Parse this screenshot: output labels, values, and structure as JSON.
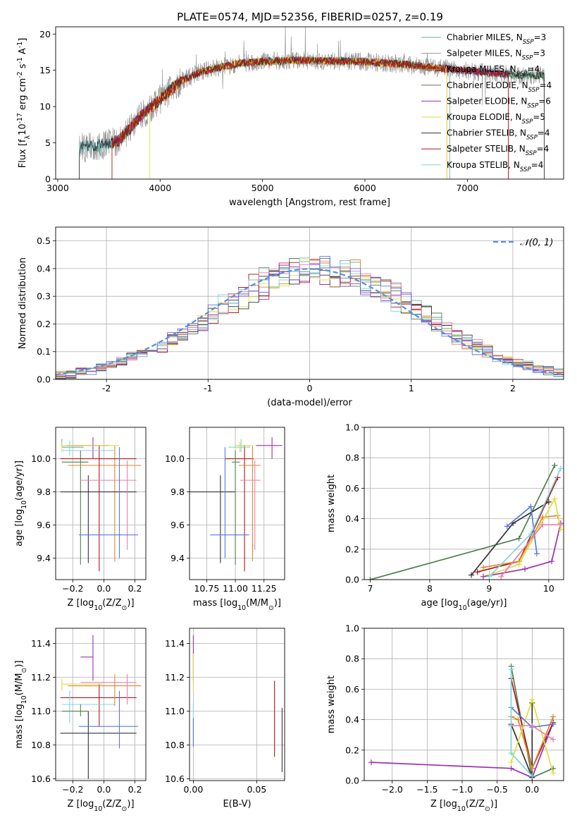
{
  "figure_title": "PLATE=0574, MJD=52356, FIBERID=0257, z=0.19",
  "colors": {
    "models": [
      "#6fa8a0",
      "#9a9a9a",
      "#d98a2b",
      "#4f7f4f",
      "#9b30b0",
      "#dede3a",
      "#333333",
      "#b01818",
      "#7fd6dc"
    ],
    "gauss": "#5a8de0",
    "grid": "#b0b0b0",
    "pink": "#e87fb0",
    "blue": "#5a78e0"
  },
  "chart_data": [
    {
      "id": "spectrum",
      "type": "line",
      "title": "PLATE=0574, MJD=52356, FIBERID=0257, z=0.19",
      "xlabel": "wavelength [Angstrom, rest frame]",
      "ylabel": "Flux [f$_\\lambda$10$^{-17}$ erg cm$^{-2}$ s$^{-1}$ A$^{-1}$]",
      "xlim": [
        2980,
        7940
      ],
      "ylim": [
        0,
        21
      ],
      "xticks": [
        3000,
        4000,
        5000,
        6000,
        7000
      ],
      "yticks": [
        0,
        5,
        10,
        15,
        20
      ],
      "legend_position": "right",
      "legend": [
        {
          "label": "Chabrier MILES, N",
          "sub": "SSP",
          "tail": "=3"
        },
        {
          "label": "Salpeter MILES, N",
          "sub": "SSP",
          "tail": "=3"
        },
        {
          "label": "Kroupa MILES, N",
          "sub": "SSP",
          "tail": "=4"
        },
        {
          "label": "Chabrier ELODIE, N",
          "sub": "SSP",
          "tail": "=4"
        },
        {
          "label": "Salpeter ELODIE, N",
          "sub": "SSP",
          "tail": "=6"
        },
        {
          "label": "Kroupa ELODIE, N",
          "sub": "SSP",
          "tail": "=5"
        },
        {
          "label": "Chabrier STELIB, N",
          "sub": "SSP",
          "tail": "=4"
        },
        {
          "label": "Salpeter STELIB, N",
          "sub": "SSP",
          "tail": "=4"
        },
        {
          "label": "Kroupa STELIB, N",
          "sub": "SSP",
          "tail": "=4"
        }
      ],
      "continuum": {
        "x": [
          3200,
          3400,
          3600,
          3800,
          4000,
          4200,
          4400,
          4600,
          4800,
          5000,
          5300,
          5600,
          6000,
          6400,
          6800,
          7200,
          7500
        ],
        "y": [
          4.3,
          4.6,
          5.3,
          8.5,
          11.0,
          13.5,
          14.8,
          15.5,
          16.0,
          16.2,
          16.4,
          16.3,
          16.2,
          15.8,
          15.2,
          14.7,
          14.3
        ]
      },
      "model_starts": [
        3210,
        3210,
        3530,
        3530,
        3530,
        3900,
        3210,
        3530,
        3210
      ],
      "model_ends": [
        6830,
        7750,
        6800,
        7750,
        7400,
        6800,
        7750,
        7400,
        7750
      ]
    },
    {
      "id": "residuals",
      "type": "line",
      "xlabel": "(data-model)/error",
      "ylabel": "Normed distribution",
      "xlim": [
        -2.5,
        2.5
      ],
      "ylim": [
        0,
        0.55
      ],
      "xticks": [
        -2,
        -1,
        0,
        1,
        2
      ],
      "yticks": [
        0.0,
        0.1,
        0.2,
        0.3,
        0.4,
        0.5
      ],
      "legend": [
        "𝒩(0, 1)"
      ],
      "legend_position": "top-right",
      "gauss_mean": 0,
      "gauss_sigma": 1
    },
    {
      "id": "age_vs_Z",
      "type": "scatter",
      "xlabel": "Z [log$_{10}$(Z/Z$_\\odot$)]",
      "ylabel": "age  [log$_{10}$(age/yr)]",
      "xlim": [
        -0.31,
        0.27
      ],
      "ylim": [
        9.27,
        10.19
      ],
      "xticks": [
        -0.2,
        0.0,
        0.2
      ],
      "xtick_labels": [
        "−0.2",
        "0.0",
        "0.2"
      ],
      "yticks": [
        9.4,
        9.6,
        9.8,
        10.0
      ],
      "points": [
        {
          "x": -0.27,
          "y": 10.07,
          "xerr": [
            0.0,
            0.14
          ],
          "yerr": [
            0.0,
            0.05
          ],
          "color": 0
        },
        {
          "x": -0.15,
          "y": 9.98,
          "xerr": [
            0.12,
            0.05
          ],
          "yerr": [
            0.62,
            0.07
          ],
          "color": 3
        },
        {
          "x": 0.07,
          "y": 9.96,
          "xerr": [
            0.3,
            0.17
          ],
          "yerr": [
            0.58,
            0.12
          ],
          "color": 2
        },
        {
          "x": -0.03,
          "y": 10.0,
          "xerr": [
            0.25,
            0.24
          ],
          "yerr": [
            0.68,
            0.08
          ],
          "color": 7
        },
        {
          "x": -0.1,
          "y": 9.8,
          "xerr": [
            0.18,
            0.31
          ],
          "yerr": [
            0.43,
            0.1
          ],
          "color": 6
        },
        {
          "x": 0.15,
          "y": 9.87,
          "xerr": [
            0.3,
            0.06
          ],
          "yerr": [
            0.42,
            0.12
          ],
          "color": "pink"
        },
        {
          "x": 0.1,
          "y": 9.54,
          "xerr": [
            0.26,
            0.12
          ],
          "yerr": [
            0.14,
            0.53
          ],
          "color": "blue"
        },
        {
          "x": -0.07,
          "y": 10.08,
          "xerr": [
            0.17,
            0.1
          ],
          "yerr": [
            0.08,
            0.05
          ],
          "color": 4
        },
        {
          "x": -0.22,
          "y": 10.05,
          "xerr": [
            0.05,
            0.29
          ],
          "yerr": [
            0.03,
            0.06
          ],
          "color": 8
        },
        {
          "x": -0.27,
          "y": 10.08,
          "xerr": [
            0.0,
            0.37
          ],
          "yerr": [
            0.04,
            0.02
          ],
          "color": 5
        }
      ]
    },
    {
      "id": "age_vs_mass",
      "type": "scatter",
      "xlabel": "mass [log$_{10}$(M/M$_\\odot$)]",
      "ylabel": "",
      "xlim": [
        10.6,
        11.43
      ],
      "ylim": [
        9.27,
        10.19
      ],
      "xticks": [
        10.75,
        11.0,
        11.25
      ],
      "xtick_labels": [
        "10.75",
        "11.00",
        "11.25"
      ],
      "yticks": [
        9.4,
        9.6,
        9.8,
        10.0
      ],
      "points": [
        {
          "x": 10.87,
          "y": 9.8,
          "xerr": [
            0.27,
            0.13
          ],
          "yerr": [
            0.43,
            0.1
          ],
          "color": 6
        },
        {
          "x": 11.08,
          "y": 10.0,
          "xerr": [
            0.17,
            0.08
          ],
          "yerr": [
            0.68,
            0.08
          ],
          "color": 7
        },
        {
          "x": 11.15,
          "y": 9.96,
          "xerr": [
            0.12,
            0.07
          ],
          "yerr": [
            0.58,
            0.12
          ],
          "color": 2
        },
        {
          "x": 11.17,
          "y": 9.87,
          "xerr": [
            0.13,
            0.05
          ],
          "yerr": [
            0.42,
            0.12
          ],
          "color": "pink"
        },
        {
          "x": 10.91,
          "y": 9.54,
          "xerr": [
            0.13,
            0.21
          ],
          "yerr": [
            0.14,
            0.53
          ],
          "color": "blue"
        },
        {
          "x": 11.32,
          "y": 10.08,
          "xerr": [
            0.14,
            0.09
          ],
          "yerr": [
            0.08,
            0.05
          ],
          "color": 4
        },
        {
          "x": 11.05,
          "y": 10.07,
          "xerr": [
            0.11,
            0.08
          ],
          "yerr": [
            0.03,
            0.05
          ],
          "color": 8
        },
        {
          "x": 11.04,
          "y": 10.08,
          "xerr": [
            0.04,
            0.1
          ],
          "yerr": [
            0.04,
            0.02
          ],
          "color": 5
        },
        {
          "x": 11.0,
          "y": 9.98,
          "xerr": [
            0.03,
            0.04
          ],
          "yerr": [
            0.62,
            0.07
          ],
          "color": 3
        }
      ]
    },
    {
      "id": "weight_vs_age",
      "type": "line",
      "xlabel": "age  [log$_{10}$(age/yr)]",
      "ylabel": "mass weight",
      "xlim": [
        6.9,
        10.25
      ],
      "ylim": [
        0,
        1.0
      ],
      "xticks": [
        7,
        8,
        9,
        10
      ],
      "yticks": [
        0.0,
        0.2,
        0.4,
        0.6,
        0.8,
        1.0
      ],
      "series": [
        {
          "color": 3,
          "x": [
            7.0,
            9.5,
            10.1
          ],
          "y": [
            0.0,
            0.27,
            0.75
          ]
        },
        {
          "color": 6,
          "x": [
            8.7,
            9.4,
            10.0
          ],
          "y": [
            0.03,
            0.37,
            0.51
          ]
        },
        {
          "color": 7,
          "x": [
            8.8,
            9.5,
            10.15
          ],
          "y": [
            0.05,
            0.12,
            0.67
          ]
        },
        {
          "color": 4,
          "x": [
            8.9,
            9.6,
            10.05,
            10.2
          ],
          "y": [
            0.02,
            0.07,
            0.12,
            0.37
          ]
        },
        {
          "color": 2,
          "x": [
            8.9,
            9.5,
            9.9,
            10.15
          ],
          "y": [
            0.08,
            0.12,
            0.41,
            0.42
          ]
        },
        {
          "color": 5,
          "x": [
            9.0,
            9.5,
            10.1,
            10.2
          ],
          "y": [
            0.03,
            0.1,
            0.53,
            0.33
          ]
        },
        {
          "color": "blue",
          "x": [
            9.3,
            9.7,
            9.8
          ],
          "y": [
            0.35,
            0.48,
            0.17
          ]
        },
        {
          "color": "pink",
          "x": [
            9.2,
            9.9,
            10.2
          ],
          "y": [
            0.02,
            0.36,
            0.36
          ]
        },
        {
          "color": 8,
          "x": [
            9.0,
            9.7,
            10.2
          ],
          "y": [
            0.02,
            0.3,
            0.73
          ]
        }
      ]
    },
    {
      "id": "mass_vs_Z",
      "type": "scatter",
      "xlabel": "Z [log$_{10}$(Z/Z$_\\odot$)]",
      "ylabel": "mass [log$_{10}$(M/M$_\\odot$)]",
      "xlim": [
        -0.31,
        0.27
      ],
      "ylim": [
        10.59,
        11.49
      ],
      "xticks": [
        -0.2,
        0.0,
        0.2
      ],
      "xtick_labels": [
        "−0.2",
        "0.0",
        "0.2"
      ],
      "yticks": [
        10.6,
        10.8,
        11.0,
        11.2,
        11.4
      ],
      "points": [
        {
          "x": -0.1,
          "y": 10.87,
          "xerr": [
            0.18,
            0.31
          ],
          "yerr": [
            0.27,
            0.13
          ],
          "color": 6
        },
        {
          "x": -0.03,
          "y": 11.08,
          "xerr": [
            0.25,
            0.24
          ],
          "yerr": [
            0.17,
            0.08
          ],
          "color": 7
        },
        {
          "x": 0.07,
          "y": 11.15,
          "xerr": [
            0.3,
            0.17
          ],
          "yerr": [
            0.12,
            0.07
          ],
          "color": 2
        },
        {
          "x": 0.15,
          "y": 11.17,
          "xerr": [
            0.3,
            0.06
          ],
          "yerr": [
            0.13,
            0.05
          ],
          "color": "pink"
        },
        {
          "x": 0.1,
          "y": 10.91,
          "xerr": [
            0.26,
            0.12
          ],
          "yerr": [
            0.13,
            0.21
          ],
          "color": "blue"
        },
        {
          "x": -0.07,
          "y": 11.32,
          "xerr": [
            0.08,
            0.0
          ],
          "yerr": [
            0.14,
            0.13
          ],
          "color": 4
        },
        {
          "x": -0.22,
          "y": 11.04,
          "xerr": [
            0.05,
            0.29
          ],
          "yerr": [
            0.11,
            0.08
          ],
          "color": 8
        },
        {
          "x": -0.27,
          "y": 11.16,
          "xerr": [
            0.0,
            0.26
          ],
          "yerr": [
            0.04,
            0.03
          ],
          "color": 5
        },
        {
          "x": -0.15,
          "y": 11.0,
          "xerr": [
            0.12,
            0.05
          ],
          "yerr": [
            0.03,
            0.04
          ],
          "color": 3
        }
      ]
    },
    {
      "id": "mass_vs_EBV",
      "type": "scatter",
      "xlabel": "E(B-V)",
      "ylabel": "",
      "xlim": [
        -0.003,
        0.072
      ],
      "ylim": [
        10.59,
        11.49
      ],
      "xticks": [
        0.0,
        0.05
      ],
      "xtick_labels": [
        "0.00",
        "0.05"
      ],
      "yticks": [
        10.6,
        10.8,
        11.0,
        11.2,
        11.4
      ],
      "points": [
        {
          "x": 0.0,
          "y": 11.32,
          "xerr": [
            0.0,
            0.0
          ],
          "yerr": [
            0.14,
            0.13
          ],
          "color": 4
        },
        {
          "x": 0.0,
          "y": 11.16,
          "xerr": [
            0.0,
            0.0
          ],
          "yerr": [
            0.04,
            0.18
          ],
          "color": 5
        },
        {
          "x": 0.0,
          "y": 10.95,
          "xerr": [
            0.0,
            0.0
          ],
          "yerr": [
            0.15,
            0.1
          ],
          "color": 8
        },
        {
          "x": 0.0,
          "y": 10.86,
          "xerr": [
            0.0,
            0.0
          ],
          "yerr": [
            0.07,
            0.1
          ],
          "color": "blue"
        },
        {
          "x": 0.064,
          "y": 10.95,
          "xerr": [
            0.0,
            0.0
          ],
          "yerr": [
            0.22,
            0.23
          ],
          "color": 7
        },
        {
          "x": 0.07,
          "y": 10.82,
          "xerr": [
            0.0,
            0.0
          ],
          "yerr": [
            0.18,
            0.2
          ],
          "color": 6
        }
      ]
    },
    {
      "id": "weight_vs_Z",
      "type": "line",
      "xlabel": "Z [log$_{10}$(Z/Z$_\\odot$)]",
      "ylabel": "mass weight",
      "xlim": [
        -2.4,
        0.45
      ],
      "ylim": [
        0,
        1.0
      ],
      "xticks": [
        -2.0,
        -1.5,
        -1.0,
        -0.5,
        0.0
      ],
      "xtick_labels": [
        "−2.0",
        "−1.5",
        "−1.0",
        "−0.5",
        "0.0"
      ],
      "yticks": [
        0.0,
        0.2,
        0.4,
        0.6,
        0.8,
        1.0
      ],
      "series": [
        {
          "color": 4,
          "x": [
            -2.3,
            -0.3,
            0.0,
            0.3
          ],
          "y": [
            0.12,
            0.08,
            0.02,
            0.38
          ]
        },
        {
          "color": 3,
          "x": [
            -0.3,
            0.0,
            0.3
          ],
          "y": [
            0.75,
            0.02,
            0.08
          ]
        },
        {
          "color": 7,
          "x": [
            -0.3,
            0.0,
            0.3
          ],
          "y": [
            0.67,
            0.08,
            0.38
          ]
        },
        {
          "color": 6,
          "x": [
            -0.3,
            0.0,
            0.0
          ],
          "y": [
            0.37,
            0.02,
            0.51
          ]
        },
        {
          "color": 2,
          "x": [
            -0.3,
            -0.2,
            0.0,
            0.3
          ],
          "y": [
            0.42,
            0.4,
            0.08,
            0.42
          ]
        },
        {
          "color": 5,
          "x": [
            -0.3,
            0.0,
            0.3
          ],
          "y": [
            0.12,
            0.53,
            0.05
          ]
        },
        {
          "color": "blue",
          "x": [
            -0.3,
            0.0,
            0.3
          ],
          "y": [
            0.48,
            0.35,
            0.37
          ]
        },
        {
          "color": "pink",
          "x": [
            -0.3,
            0.0,
            0.3
          ],
          "y": [
            0.36,
            0.36,
            0.27
          ]
        },
        {
          "color": 8,
          "x": [
            -0.3,
            -0.3,
            0.0
          ],
          "y": [
            0.73,
            0.18,
            0.03
          ]
        }
      ]
    }
  ]
}
